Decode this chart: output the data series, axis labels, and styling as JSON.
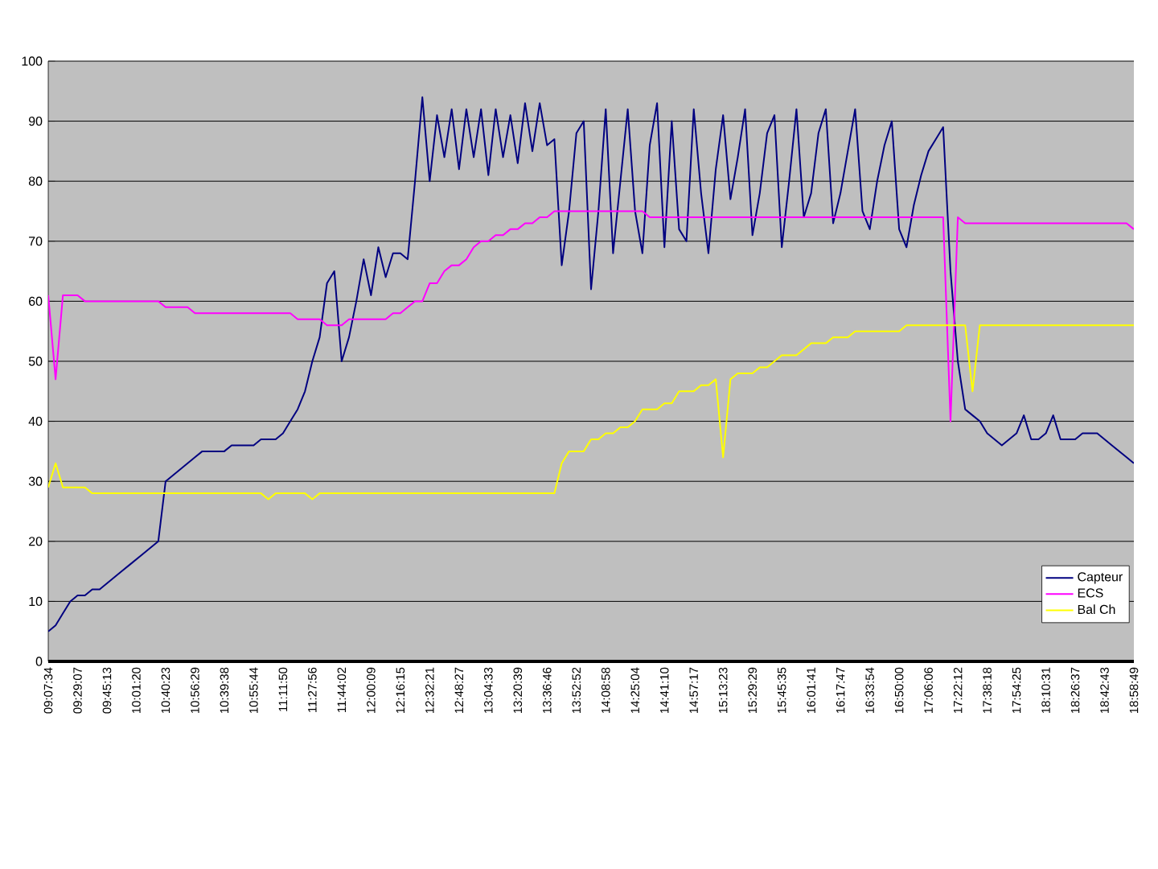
{
  "chart_data": {
    "type": "line",
    "categories": [
      "09:07:34",
      null,
      null,
      null,
      "09:29:07",
      null,
      null,
      null,
      "09:45:13",
      null,
      null,
      null,
      "10:01:20",
      null,
      null,
      null,
      "10:40:23",
      null,
      null,
      null,
      "10:56:29",
      null,
      null,
      null,
      "10:39:38",
      null,
      null,
      null,
      "10:55:44",
      null,
      null,
      null,
      "11:11:50",
      null,
      null,
      null,
      "11:27:56",
      null,
      null,
      null,
      "11:44:02",
      null,
      null,
      null,
      "12:00:09",
      null,
      null,
      null,
      "12:16:15",
      null,
      null,
      null,
      "12:32:21",
      null,
      null,
      null,
      "12:48:27",
      null,
      null,
      null,
      "13:04:33",
      null,
      null,
      null,
      "13:20:39",
      null,
      null,
      null,
      "13:36:46",
      null,
      null,
      null,
      "13:52:52",
      null,
      null,
      null,
      "14:08:58",
      null,
      null,
      null,
      "14:25:04",
      null,
      null,
      null,
      "14:41:10",
      null,
      null,
      null,
      "14:57:17",
      null,
      null,
      null,
      "15:13:23",
      null,
      null,
      null,
      "15:29:29",
      null,
      null,
      null,
      "15:45:35",
      null,
      null,
      null,
      "16:01:41",
      null,
      null,
      null,
      "16:17:47",
      null,
      null,
      null,
      "16:33:54",
      null,
      null,
      null,
      "16:50:00",
      null,
      null,
      null,
      "17:06:06",
      null,
      null,
      null,
      "17:22:12",
      null,
      null,
      null,
      "17:38:18",
      null,
      null,
      null,
      "17:54:25",
      null,
      null,
      null,
      "18:10:31",
      null,
      null,
      null,
      "18:26:37",
      null,
      null,
      null,
      "18:42:43",
      null,
      null,
      null,
      "18:58:49"
    ],
    "series": [
      {
        "name": "Capteur",
        "color": "#000080",
        "values": [
          5,
          6,
          8,
          10,
          11,
          11,
          12,
          12,
          13,
          14,
          15,
          16,
          17,
          18,
          19,
          20,
          30,
          31,
          32,
          33,
          34,
          35,
          35,
          35,
          35,
          36,
          36,
          36,
          36,
          37,
          37,
          37,
          38,
          40,
          42,
          45,
          50,
          54,
          63,
          65,
          50,
          54,
          60,
          67,
          61,
          69,
          64,
          68,
          68,
          67,
          80,
          94,
          80,
          91,
          84,
          92,
          82,
          92,
          84,
          92,
          81,
          92,
          84,
          91,
          83,
          93,
          85,
          93,
          86,
          87,
          66,
          75,
          88,
          90,
          62,
          75,
          92,
          68,
          80,
          92,
          75,
          68,
          86,
          93,
          69,
          90,
          72,
          70,
          92,
          78,
          68,
          82,
          91,
          77,
          84,
          92,
          71,
          78,
          88,
          91,
          69,
          80,
          92,
          74,
          78,
          88,
          92,
          73,
          78,
          85,
          92,
          75,
          72,
          80,
          86,
          90,
          72,
          69,
          76,
          81,
          85,
          87,
          89,
          65,
          50,
          42,
          41,
          40,
          38,
          37,
          36,
          37,
          38,
          41,
          37,
          37,
          38,
          41,
          37,
          37,
          37,
          38,
          38,
          38,
          37,
          36,
          35,
          34,
          33
        ]
      },
      {
        "name": "ECS",
        "color": "#ff00ff",
        "values": [
          61,
          47,
          61,
          61,
          61,
          60,
          60,
          60,
          60,
          60,
          60,
          60,
          60,
          60,
          60,
          60,
          59,
          59,
          59,
          59,
          58,
          58,
          58,
          58,
          58,
          58,
          58,
          58,
          58,
          58,
          58,
          58,
          58,
          58,
          57,
          57,
          57,
          57,
          56,
          56,
          56,
          57,
          57,
          57,
          57,
          57,
          57,
          58,
          58,
          59,
          60,
          60,
          63,
          63,
          65,
          66,
          66,
          67,
          69,
          70,
          70,
          71,
          71,
          72,
          72,
          73,
          73,
          74,
          74,
          75,
          75,
          75,
          75,
          75,
          75,
          75,
          75,
          75,
          75,
          75,
          75,
          75,
          74,
          74,
          74,
          74,
          74,
          74,
          74,
          74,
          74,
          74,
          74,
          74,
          74,
          74,
          74,
          74,
          74,
          74,
          74,
          74,
          74,
          74,
          74,
          74,
          74,
          74,
          74,
          74,
          74,
          74,
          74,
          74,
          74,
          74,
          74,
          74,
          74,
          74,
          74,
          74,
          74,
          40,
          74,
          73,
          73,
          73,
          73,
          73,
          73,
          73,
          73,
          73,
          73,
          73,
          73,
          73,
          73,
          73,
          73,
          73,
          73,
          73,
          73,
          73,
          73,
          73,
          72
        ]
      },
      {
        "name": "Bal Ch",
        "color": "#ffff00",
        "values": [
          29,
          33,
          29,
          29,
          29,
          29,
          28,
          28,
          28,
          28,
          28,
          28,
          28,
          28,
          28,
          28,
          28,
          28,
          28,
          28,
          28,
          28,
          28,
          28,
          28,
          28,
          28,
          28,
          28,
          28,
          27,
          28,
          28,
          28,
          28,
          28,
          27,
          28,
          28,
          28,
          28,
          28,
          28,
          28,
          28,
          28,
          28,
          28,
          28,
          28,
          28,
          28,
          28,
          28,
          28,
          28,
          28,
          28,
          28,
          28,
          28,
          28,
          28,
          28,
          28,
          28,
          28,
          28,
          28,
          28,
          33,
          35,
          35,
          35,
          37,
          37,
          38,
          38,
          39,
          39,
          40,
          42,
          42,
          42,
          43,
          43,
          45,
          45,
          45,
          46,
          46,
          47,
          34,
          47,
          48,
          48,
          48,
          49,
          49,
          50,
          51,
          51,
          51,
          52,
          53,
          53,
          53,
          54,
          54,
          54,
          55,
          55,
          55,
          55,
          55,
          55,
          55,
          56,
          56,
          56,
          56,
          56,
          56,
          56,
          56,
          56,
          45,
          56,
          56,
          56,
          56,
          56,
          56,
          56,
          56,
          56,
          56,
          56,
          56,
          56,
          56,
          56,
          56,
          56,
          56,
          56,
          56,
          56,
          56
        ]
      }
    ],
    "ylim": [
      0,
      100
    ],
    "yticks": [
      0,
      10,
      20,
      30,
      40,
      50,
      60,
      70,
      80,
      90,
      100
    ],
    "grid": "y",
    "legend": "bottom right",
    "marker": "none",
    "line_style": "solid"
  }
}
